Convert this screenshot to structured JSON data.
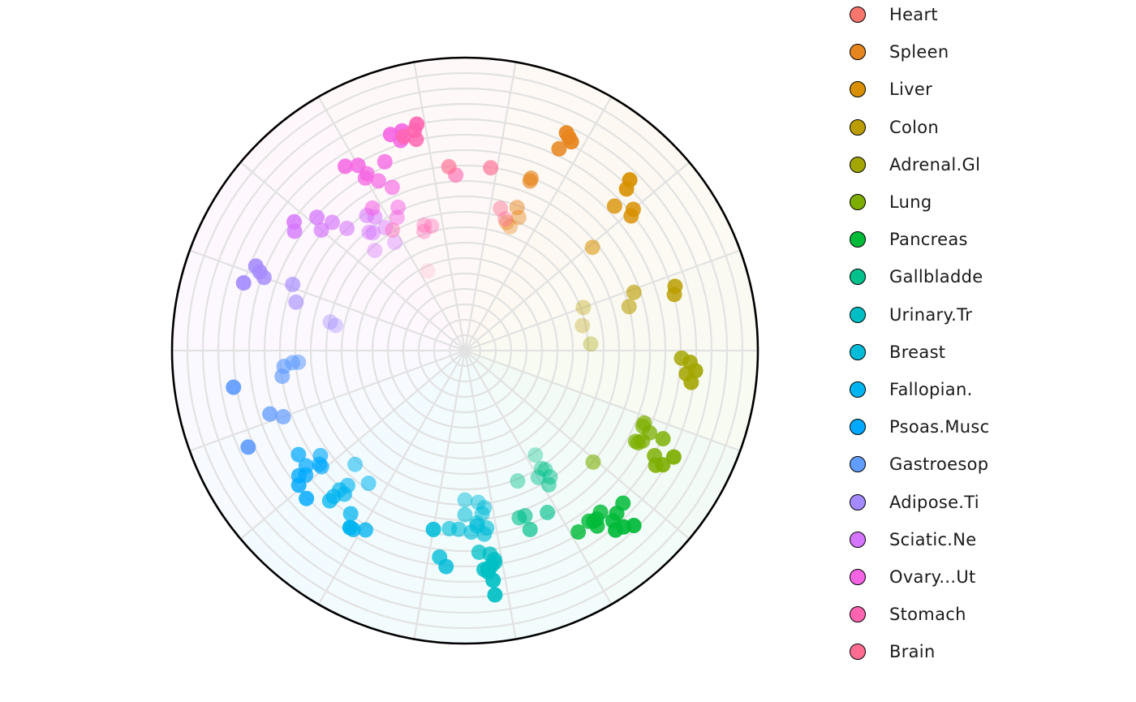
{
  "chart_data": {
    "type": "scatter",
    "coordinate_system": "polar",
    "title": "",
    "xlabel": "",
    "ylabel": "",
    "angle_unit": "degrees clockwise from top",
    "radius_range": [
      0,
      1
    ],
    "grid": true,
    "legend_placement": "right",
    "series": [
      {
        "name": "Heart",
        "color": "#F8766D",
        "points": []
      },
      {
        "name": "Spleen",
        "color": "#E7851E",
        "points": [
          [
            25,
            0.82
          ],
          [
            26,
            0.81
          ],
          [
            25,
            0.76
          ],
          [
            21,
            0.62
          ],
          [
            20,
            0.52
          ],
          [
            22,
            0.49
          ],
          [
            20,
            0.45
          ],
          [
            18,
            0.46
          ],
          [
            21,
            0.63
          ],
          [
            27,
            0.8
          ]
        ]
      },
      {
        "name": "Liver",
        "color": "#D89000",
        "points": [
          [
            44,
            0.81
          ],
          [
            45,
            0.78
          ],
          [
            46,
            0.71
          ],
          [
            50,
            0.75
          ],
          [
            51,
            0.73
          ],
          [
            51,
            0.56
          ]
        ]
      },
      {
        "name": "Colon",
        "color": "#BB9D00",
        "points": [
          [
            73,
            0.75
          ],
          [
            75,
            0.74
          ],
          [
            71,
            0.61
          ],
          [
            75,
            0.58
          ],
          [
            70,
            0.43
          ],
          [
            78,
            0.41
          ]
        ]
      },
      {
        "name": "Adrenal.Gl",
        "color": "#A3A500",
        "points": [
          [
            93,
            0.77
          ],
          [
            95,
            0.79
          ],
          [
            96,
            0.76
          ],
          [
            98,
            0.78
          ],
          [
            92,
            0.74
          ],
          [
            87,
            0.43
          ]
        ]
      },
      {
        "name": "Lung",
        "color": "#7CAE00",
        "points": [
          [
            113,
            0.66
          ],
          [
            114,
            0.69
          ],
          [
            118,
            0.67
          ],
          [
            120,
            0.78
          ],
          [
            119,
            0.74
          ],
          [
            121,
            0.76
          ],
          [
            117,
            0.8
          ],
          [
            114,
            0.74
          ],
          [
            112,
            0.66
          ],
          [
            118,
            0.66
          ],
          [
            117,
            0.68
          ],
          [
            131,
            0.58
          ]
        ]
      },
      {
        "name": "Pancreas",
        "color": "#00BA38",
        "points": [
          [
            136,
            0.83
          ],
          [
            140,
            0.8
          ],
          [
            138,
            0.81
          ],
          [
            139,
            0.77
          ],
          [
            137,
            0.76
          ],
          [
            134,
            0.75
          ],
          [
            140,
            0.72
          ],
          [
            143,
            0.75
          ],
          [
            143,
            0.73
          ],
          [
            142,
            0.73
          ],
          [
            144,
            0.72
          ],
          [
            148,
            0.73
          ]
        ]
      },
      {
        "name": "Gallbladde",
        "color": "#00C08B",
        "points": [
          [
            148,
            0.54
          ],
          [
            146,
            0.52
          ],
          [
            146,
            0.49
          ],
          [
            150,
            0.5
          ],
          [
            153,
            0.62
          ],
          [
            160,
            0.65
          ],
          [
            162,
            0.6
          ],
          [
            160,
            0.6
          ],
          [
            158,
            0.48
          ],
          [
            146,
            0.43
          ],
          [
            147,
            0.48
          ]
        ]
      },
      {
        "name": "Urinary.Tr",
        "color": "#00BFC4",
        "points": [
          [
            173,
            0.84
          ],
          [
            173,
            0.79
          ],
          [
            174,
            0.75
          ],
          [
            172,
            0.73
          ],
          [
            175,
            0.75
          ],
          [
            173,
            0.7
          ],
          [
            173,
            0.74
          ],
          [
            174,
            0.76
          ],
          [
            172,
            0.72
          ],
          [
            176,
            0.69
          ]
        ]
      },
      {
        "name": "Breast",
        "color": "#00BCD8",
        "points": [
          [
            185,
            0.74
          ],
          [
            187,
            0.71
          ],
          [
            190,
            0.62
          ],
          [
            190,
            0.62
          ],
          [
            178,
            0.62
          ],
          [
            174,
            0.56
          ],
          [
            173,
            0.54
          ],
          [
            175,
            0.52
          ],
          [
            176,
            0.59
          ],
          [
            180,
            0.56
          ],
          [
            173,
            0.61
          ],
          [
            174,
            0.63
          ],
          [
            176,
            0.6
          ],
          [
            180,
            0.51
          ],
          [
            185,
            0.61
          ],
          [
            182,
            0.61
          ]
        ]
      },
      {
        "name": "Fallopian.",
        "color": "#00B4F0",
        "points": [
          [
            213,
            0.72
          ],
          [
            213,
            0.72
          ],
          [
            212,
            0.72
          ],
          [
            209,
            0.7
          ],
          [
            215,
            0.68
          ],
          [
            222,
            0.64
          ],
          [
            222,
            0.69
          ],
          [
            221,
            0.61
          ],
          [
            216,
            0.56
          ],
          [
            222,
            0.67
          ],
          [
            220,
            0.64
          ],
          [
            224,
            0.54
          ]
        ]
      },
      {
        "name": "Psoas.Musc",
        "color": "#00A9FF",
        "points": [
          [
            233,
            0.71
          ],
          [
            231,
            0.73
          ],
          [
            234,
            0.67
          ],
          [
            238,
            0.67
          ],
          [
            231,
            0.63
          ],
          [
            234,
            0.61
          ],
          [
            227,
            0.74
          ],
          [
            232,
            0.69
          ],
          [
            232,
            0.63
          ]
        ]
      },
      {
        "name": "Gastroesop",
        "color": "#619CFF",
        "points": [
          [
            246,
            0.81
          ],
          [
            252,
            0.7
          ],
          [
            250,
            0.66
          ],
          [
            261,
            0.8
          ],
          [
            265,
            0.62
          ],
          [
            266,
            0.59
          ],
          [
            266,
            0.57
          ],
          [
            262,
            0.63
          ]
        ]
      },
      {
        "name": "Adipose.Ti",
        "color": "#A58AFF",
        "points": [
          [
            287,
            0.79
          ],
          [
            292,
            0.77
          ],
          [
            290,
            0.73
          ],
          [
            291,
            0.75
          ],
          [
            286,
            0.6
          ],
          [
            282,
            0.47
          ],
          [
            281,
            0.45
          ],
          [
            291,
            0.63
          ]
        ]
      },
      {
        "name": "Sciatic.Ne",
        "color": "#D575FE",
        "points": [
          [
            307,
            0.73
          ],
          [
            305,
            0.71
          ],
          [
            310,
            0.64
          ],
          [
            314,
            0.63
          ],
          [
            312,
            0.68
          ],
          [
            316,
            0.58
          ],
          [
            321,
            0.52
          ],
          [
            324,
            0.57
          ],
          [
            318,
            0.46
          ],
          [
            322,
            0.51
          ],
          [
            326,
            0.55
          ],
          [
            327,
            0.5
          ],
          [
            327,
            0.44
          ]
        ]
      },
      {
        "name": "Ovary...Ut",
        "color": "#F564E3",
        "points": [
          [
            327,
            0.75
          ],
          [
            330,
            0.73
          ],
          [
            331,
            0.69
          ],
          [
            330,
            0.68
          ],
          [
            333,
            0.65
          ],
          [
            337,
            0.7
          ],
          [
            341,
            0.78
          ],
          [
            344,
            0.78
          ],
          [
            343,
            0.75
          ],
          [
            336,
            0.61
          ],
          [
            335,
            0.54
          ],
          [
            333,
            0.51
          ],
          [
            327,
            0.58
          ]
        ]
      },
      {
        "name": "Stomach",
        "color": "#FF64B0",
        "points": [
          [
            348,
            0.79
          ],
          [
            344,
            0.76
          ],
          [
            347,
            0.77
          ],
          [
            347,
            0.74
          ],
          [
            329,
            0.48
          ],
          [
            345,
            0.44
          ],
          [
            341,
            0.43
          ],
          [
            342,
            0.45
          ],
          [
            357,
            0.6
          ]
        ]
      },
      {
        "name": "Brain",
        "color": "#FF6C91",
        "points": [
          [
            355,
            0.63
          ],
          [
            335,
            0.3
          ],
          [
            8,
            0.63
          ],
          [
            14,
            0.5
          ],
          [
            17,
            0.47
          ]
        ]
      }
    ]
  }
}
